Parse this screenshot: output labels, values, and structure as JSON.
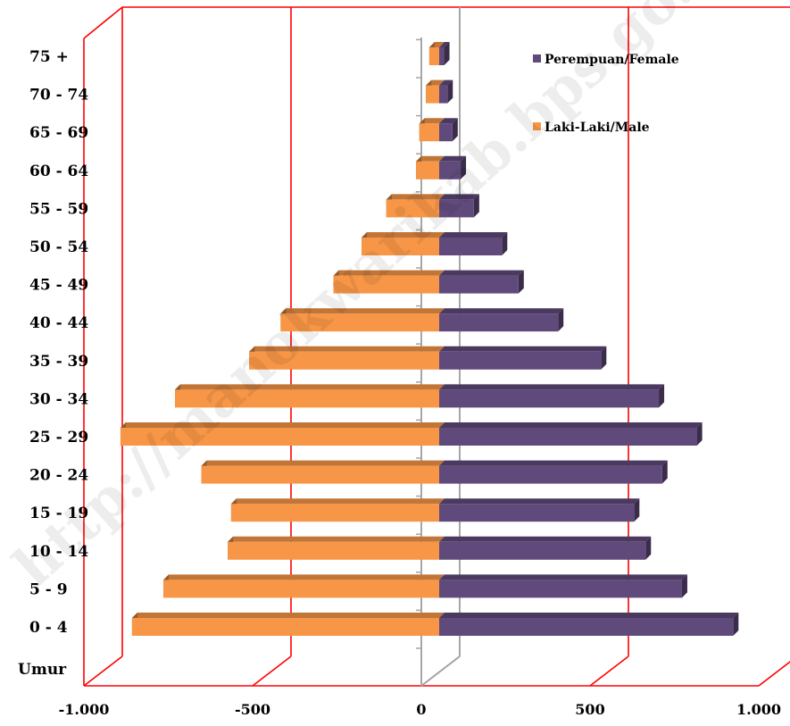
{
  "chart_data": {
    "type": "bar",
    "orientation": "horizontal",
    "style": "3d-population-pyramid",
    "title": "",
    "xlabel": "",
    "ylabel": "",
    "category_axis_title": "Umur",
    "categories": [
      "0 - 4",
      "5 - 9",
      "10 - 14",
      "15 - 19",
      "20 - 24",
      "25 - 29",
      "30 - 34",
      "35 - 39",
      "40 - 44",
      "45 - 49",
      "50 - 54",
      "55 - 59",
      "60 - 64",
      "65 - 69",
      "70 - 74",
      "75 +"
    ],
    "series": [
      {
        "name": "Laki-Laki/Male",
        "color": "#F79646",
        "values": [
          -930,
          -835,
          -640,
          -630,
          -720,
          -965,
          -800,
          -575,
          -480,
          -320,
          -235,
          -160,
          -70,
          -60,
          -40,
          -30
        ]
      },
      {
        "name": "Perempuan/Female",
        "color": "#604A7B",
        "values": [
          890,
          735,
          625,
          590,
          675,
          780,
          665,
          490,
          360,
          240,
          190,
          105,
          65,
          40,
          25,
          15
        ]
      }
    ],
    "xlim": [
      -1000,
      1000
    ],
    "xticks": [
      -1000,
      -500,
      0,
      500,
      1000
    ],
    "xtick_labels": [
      "-1.000",
      "-500",
      "0",
      "500",
      "1.000"
    ],
    "grid": true,
    "gridline_color": "#FF0000",
    "legend_position": "right",
    "legend": [
      "Perempuan/Female",
      "Laki-Laki/Male"
    ]
  },
  "watermark": "http://manokwarikab.bps.go.id"
}
